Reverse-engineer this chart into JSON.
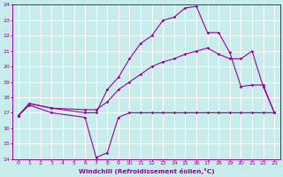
{
  "xlabel": "Windchill (Refroidissement éolien,°C)",
  "bg_color": "#c8ecec",
  "grid_color": "#ffffff",
  "line_color": "#990099",
  "xlim": [
    -0.5,
    23.5
  ],
  "ylim": [
    14,
    24
  ],
  "xticks": [
    0,
    1,
    2,
    3,
    4,
    5,
    6,
    7,
    8,
    9,
    10,
    11,
    12,
    13,
    14,
    15,
    16,
    17,
    18,
    19,
    20,
    21,
    22,
    23
  ],
  "yticks": [
    14,
    15,
    16,
    17,
    18,
    19,
    20,
    21,
    22,
    23,
    24
  ],
  "line1_x": [
    0,
    1,
    3,
    6,
    7,
    8,
    9,
    10,
    11,
    12,
    13,
    14,
    15,
    16,
    17,
    18,
    19,
    20,
    21,
    22,
    23
  ],
  "line1_y": [
    16.8,
    17.5,
    17.0,
    16.7,
    14.1,
    14.4,
    16.7,
    17.0,
    17.0,
    17.0,
    17.0,
    17.0,
    17.0,
    17.0,
    17.0,
    17.0,
    17.0,
    17.0,
    17.0,
    17.0,
    17.0
  ],
  "line2_x": [
    0,
    1,
    3,
    6,
    7,
    8,
    9,
    10,
    11,
    12,
    13,
    14,
    15,
    16,
    17,
    18,
    19,
    20,
    21,
    22,
    23
  ],
  "line2_y": [
    16.8,
    17.6,
    17.3,
    17.0,
    17.0,
    18.5,
    19.3,
    20.5,
    21.5,
    22.0,
    23.0,
    23.2,
    23.8,
    23.9,
    22.2,
    22.2,
    20.9,
    18.7,
    18.8,
    18.8,
    17.0
  ],
  "line3_x": [
    0,
    1,
    3,
    6,
    7,
    8,
    9,
    10,
    11,
    12,
    13,
    14,
    15,
    16,
    17,
    18,
    19,
    20,
    21,
    22,
    23
  ],
  "line3_y": [
    16.8,
    17.6,
    17.3,
    17.2,
    17.2,
    17.7,
    18.5,
    19.0,
    19.5,
    20.0,
    20.3,
    20.5,
    20.8,
    21.0,
    21.2,
    20.8,
    20.5,
    20.5,
    21.0,
    18.7,
    17.0
  ]
}
